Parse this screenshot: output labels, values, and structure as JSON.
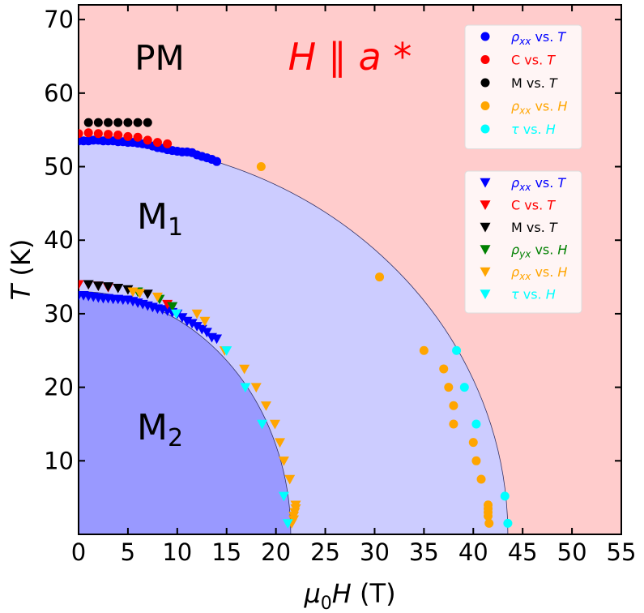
{
  "chart_data": {
    "type": "scatter",
    "title": "",
    "xlabel": {
      "mu": "μ",
      "sub": "0",
      "var": "H",
      "unit": " (T)"
    },
    "ylabel": {
      "var": "T",
      "unit": " (K)"
    },
    "xlim": [
      0,
      55
    ],
    "ylim": [
      0,
      72
    ],
    "xticks": [
      0,
      5,
      10,
      15,
      20,
      25,
      30,
      35,
      40,
      45,
      50,
      55
    ],
    "yticks": [
      10,
      20,
      30,
      40,
      50,
      60,
      70
    ],
    "grid": false,
    "annotation_field": {
      "text": "H ∥ a *",
      "color": "#ff0000"
    },
    "regions": [
      {
        "name": "PM",
        "base": "PM",
        "sub": "",
        "color": "#ffcccc",
        "boundary_T0": 53.5,
        "boundary_H0": 43.5
      },
      {
        "name": "M1",
        "base": "M",
        "sub": "1",
        "color": "#ccccff",
        "boundary_T0": 53.5,
        "boundary_H0": 43.5
      },
      {
        "name": "M2",
        "base": "M",
        "sub": "2",
        "color": "#9999ff",
        "boundary_T0": 33,
        "boundary_H0": 21.5
      }
    ],
    "legend_circles": {
      "placement": "top-right",
      "entries": [
        {
          "color": "#0000ff",
          "q": "ρ",
          "qsub": "xx",
          "mid": " vs. ",
          "v": "T"
        },
        {
          "color": "#ff0000",
          "q": "C",
          "qsub": "",
          "mid": " vs. ",
          "v": "T"
        },
        {
          "color": "#000000",
          "q": "M",
          "qsub": "",
          "mid": " vs. ",
          "v": "T"
        },
        {
          "color": "#ffa500",
          "q": "ρ",
          "qsub": "xx",
          "mid": " vs. ",
          "v": "H"
        },
        {
          "color": "#00ffff",
          "q": "τ",
          "qsub": "",
          "mid": " vs. ",
          "v": "H"
        }
      ]
    },
    "legend_triangles": {
      "placement": "right",
      "entries": [
        {
          "color": "#0000ff",
          "q": "ρ",
          "qsub": "xx",
          "mid": " vs. ",
          "v": "T"
        },
        {
          "color": "#ff0000",
          "q": "C",
          "qsub": "",
          "mid": " vs. ",
          "v": "T"
        },
        {
          "color": "#000000",
          "q": "M",
          "qsub": "",
          "mid": " vs. ",
          "v": "T"
        },
        {
          "color": "#008000",
          "q": "ρ",
          "qsub": "yx",
          "mid": " vs. ",
          "v": "H"
        },
        {
          "color": "#ffa500",
          "q": "ρ",
          "qsub": "xx",
          "mid": " vs. ",
          "v": "H"
        },
        {
          "color": "#00ffff",
          "q": "τ",
          "qsub": "",
          "mid": " vs. ",
          "v": "H"
        }
      ]
    },
    "series": [
      {
        "marker": "circle",
        "color": "#0000ff",
        "points": [
          [
            0,
            53.5
          ],
          [
            0.5,
            53.5
          ],
          [
            1,
            53.5
          ],
          [
            1.5,
            53.6
          ],
          [
            2,
            53.6
          ],
          [
            2.5,
            53.5
          ],
          [
            3,
            53.5
          ],
          [
            3.5,
            53.5
          ],
          [
            4,
            53.4
          ],
          [
            4.5,
            53.4
          ],
          [
            5,
            53.3
          ],
          [
            5.5,
            53.3
          ],
          [
            6,
            53.2
          ],
          [
            6.5,
            53.1
          ],
          [
            7,
            53
          ],
          [
            7.5,
            52.8
          ],
          [
            8,
            52.6
          ],
          [
            8.5,
            52.5
          ],
          [
            9,
            52.3
          ],
          [
            9.5,
            52.2
          ],
          [
            10,
            52.1
          ],
          [
            10.5,
            52
          ],
          [
            11,
            52
          ],
          [
            11.5,
            51.9
          ],
          [
            12,
            51.6
          ],
          [
            12.5,
            51.4
          ],
          [
            13,
            51.2
          ],
          [
            13.5,
            51
          ],
          [
            14,
            50.7
          ]
        ]
      },
      {
        "marker": "circle",
        "color": "#ff0000",
        "points": [
          [
            0,
            54.5
          ],
          [
            1,
            54.6
          ],
          [
            2,
            54.5
          ],
          [
            3,
            54.4
          ],
          [
            4,
            54.3
          ],
          [
            5,
            54.1
          ],
          [
            6,
            54
          ],
          [
            7,
            53.6
          ],
          [
            8,
            53.3
          ],
          [
            9,
            53.1
          ]
        ]
      },
      {
        "marker": "circle",
        "color": "#000000",
        "points": [
          [
            1,
            56
          ],
          [
            2,
            56
          ],
          [
            3,
            56
          ],
          [
            4,
            56
          ],
          [
            5,
            56
          ],
          [
            6,
            56
          ],
          [
            7,
            56
          ]
        ]
      },
      {
        "marker": "circle",
        "color": "#ffa500",
        "points": [
          [
            18.5,
            50
          ],
          [
            30.5,
            35
          ],
          [
            35,
            25
          ],
          [
            37,
            22.5
          ],
          [
            37.5,
            20
          ],
          [
            38,
            17.5
          ],
          [
            38,
            15
          ],
          [
            40,
            12.5
          ],
          [
            40.3,
            10
          ],
          [
            40.8,
            7.5
          ],
          [
            41.5,
            4
          ],
          [
            41.5,
            3.5
          ],
          [
            41.5,
            3
          ],
          [
            41.5,
            2.5
          ],
          [
            41.6,
            1.5
          ]
        ]
      },
      {
        "marker": "circle",
        "color": "#00ffff",
        "points": [
          [
            38.3,
            25
          ],
          [
            39.1,
            20
          ],
          [
            40.3,
            15
          ],
          [
            43.2,
            5.2
          ],
          [
            43.5,
            1.5
          ]
        ]
      },
      {
        "marker": "triangle",
        "color": "#0000ff",
        "points": [
          [
            0,
            32.5
          ],
          [
            0.5,
            32.5
          ],
          [
            1,
            32.4
          ],
          [
            1.5,
            32.3
          ],
          [
            2,
            32.2
          ],
          [
            2.5,
            32.1
          ],
          [
            3,
            32.1
          ],
          [
            3.5,
            32
          ],
          [
            4,
            32
          ],
          [
            4.5,
            31.9
          ],
          [
            5,
            31.9
          ],
          [
            5.5,
            31.7
          ],
          [
            6,
            31.5
          ],
          [
            6.5,
            31.3
          ],
          [
            7,
            31.1
          ],
          [
            7.5,
            30.9
          ],
          [
            8,
            30.7
          ],
          [
            8.5,
            30.6
          ],
          [
            9,
            30.4
          ],
          [
            9.5,
            30.2
          ],
          [
            10,
            30
          ],
          [
            10.5,
            29.5
          ],
          [
            11,
            29
          ],
          [
            11.5,
            28.7
          ],
          [
            12,
            28.3
          ],
          [
            12.5,
            27.9
          ],
          [
            13,
            27.5
          ],
          [
            13.5,
            26.8
          ],
          [
            14,
            26.6
          ]
        ]
      },
      {
        "marker": "triangle",
        "color": "#ff0000",
        "points": [
          [
            0,
            34
          ],
          [
            1,
            34
          ],
          [
            2,
            33.8
          ],
          [
            3,
            33.6
          ],
          [
            9,
            31.3
          ]
        ]
      },
      {
        "marker": "triangle",
        "color": "#000000",
        "points": [
          [
            1,
            34
          ],
          [
            2,
            33.8
          ],
          [
            3,
            33.7
          ],
          [
            4,
            33.5
          ],
          [
            5,
            33.3
          ],
          [
            7,
            32.7
          ]
        ]
      },
      {
        "marker": "triangle",
        "color": "#008000",
        "points": [
          [
            6,
            33
          ],
          [
            8.2,
            32
          ],
          [
            9.5,
            31
          ]
        ]
      },
      {
        "marker": "triangle",
        "color": "#ffa500",
        "points": [
          [
            5.5,
            33
          ],
          [
            6.2,
            32.8
          ],
          [
            8,
            32.3
          ],
          [
            12,
            30
          ],
          [
            12.8,
            29
          ],
          [
            14.8,
            25
          ],
          [
            16.8,
            22.5
          ],
          [
            18,
            20
          ],
          [
            19,
            17.5
          ],
          [
            19.9,
            15
          ],
          [
            20.4,
            12.5
          ],
          [
            20.8,
            10
          ],
          [
            21.4,
            7.5
          ],
          [
            22,
            4
          ],
          [
            22,
            3.5
          ],
          [
            21.9,
            3
          ],
          [
            21.8,
            2.5
          ],
          [
            21.8,
            2
          ],
          [
            21.6,
            1.5
          ]
        ]
      },
      {
        "marker": "triangle",
        "color": "#00ffff",
        "points": [
          [
            9.9,
            30
          ],
          [
            15,
            25
          ],
          [
            16.9,
            20
          ],
          [
            18.6,
            15
          ],
          [
            20.8,
            5.2
          ],
          [
            21.2,
            1.5
          ]
        ]
      }
    ]
  }
}
